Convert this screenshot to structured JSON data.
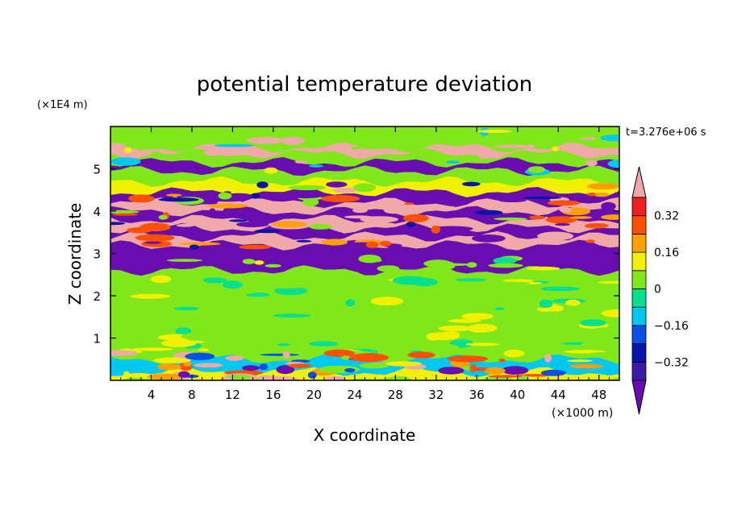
{
  "chart_data": {
    "type": "heatmap",
    "title": "potential temperature deviation",
    "xlabel": "X coordinate",
    "ylabel": "Z coordinate",
    "x_unit": "(×1000 m)",
    "y_unit": "(×1E4 m)",
    "time_label": "t=3.276e+06 s",
    "xlim": [
      0,
      50
    ],
    "ylim": [
      0,
      6
    ],
    "x_ticks": [
      4,
      8,
      12,
      16,
      20,
      24,
      28,
      32,
      36,
      40,
      44,
      48
    ],
    "y_ticks": [
      1,
      2,
      3,
      4,
      5
    ],
    "colorbar": {
      "levels": [
        -0.4,
        -0.32,
        -0.24,
        -0.16,
        -0.08,
        0,
        0.08,
        0.16,
        0.24,
        0.32,
        0.4
      ],
      "tick_labels": [
        "0.32",
        "0.16",
        "0",
        "−0.16",
        "−0.32"
      ],
      "tick_values": [
        0.32,
        0.16,
        0,
        -0.16,
        -0.32
      ],
      "colors": [
        "#6a0db0",
        "#3a1aa6",
        "#0a14a8",
        "#0a50e8",
        "#00c8f0",
        "#00e090",
        "#80e81a",
        "#f0f000",
        "#ffa000",
        "#ff5000",
        "#f02020",
        "#f0a8a8"
      ],
      "extend": "both"
    },
    "bands": [
      {
        "z": 5.75,
        "value": 0.0
      },
      {
        "z": 5.5,
        "value": 0.44
      },
      {
        "z": 5.35,
        "value": 0.06
      },
      {
        "z": 5.15,
        "value": -0.42
      },
      {
        "z": 4.95,
        "value": 0.04
      },
      {
        "z": 4.7,
        "value": 0.1
      },
      {
        "z": 4.45,
        "value": -0.42
      },
      {
        "z": 4.2,
        "value": 0.44
      },
      {
        "z": 4.0,
        "value": -0.42
      },
      {
        "z": 3.8,
        "value": 0.44
      },
      {
        "z": 3.6,
        "value": -0.42
      },
      {
        "z": 3.4,
        "value": 0.44
      },
      {
        "z": 3.2,
        "value": -0.42
      },
      {
        "z": 2.6,
        "value": 0.02
      },
      {
        "z": 1.8,
        "value": 0.05
      },
      {
        "z": 1.0,
        "value": 0.04
      },
      {
        "z": 0.5,
        "value": -0.1
      },
      {
        "z": 0.2,
        "value": 0.15
      }
    ]
  }
}
